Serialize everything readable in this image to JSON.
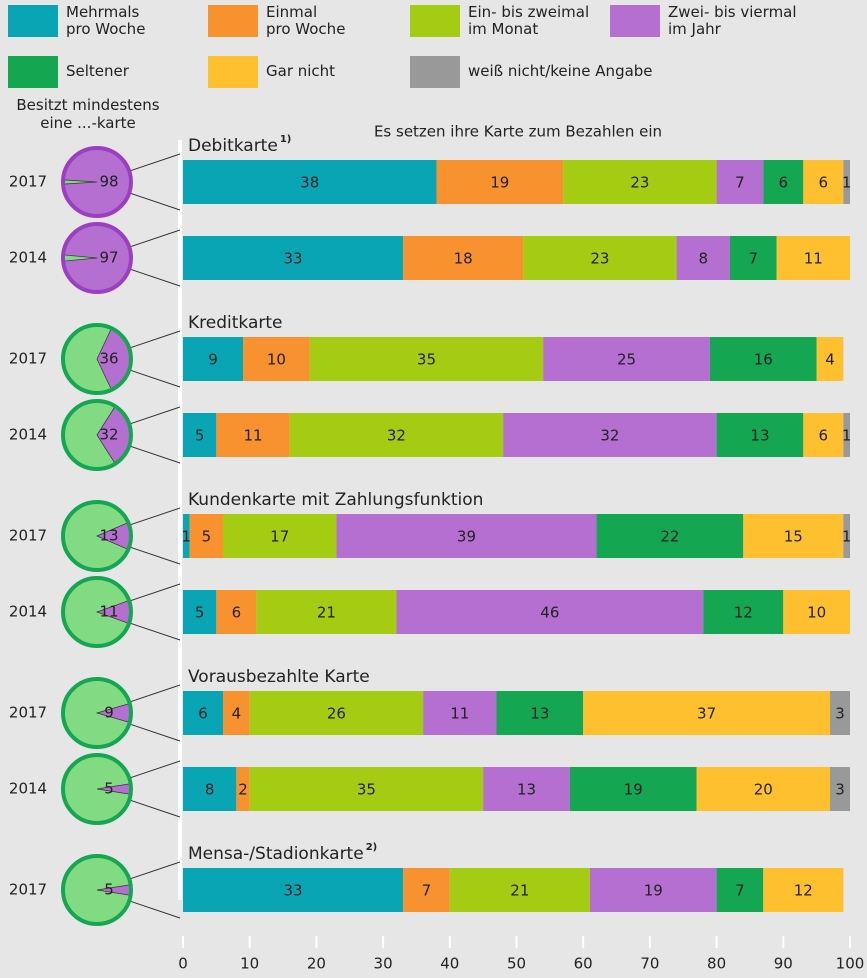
{
  "chart_data": {
    "type": "bar",
    "orientation": "horizontal",
    "stacked": true,
    "title": "Es setzen ihre Karte zum Bezahlen ein",
    "ownership_label": "Besitzt mindestens\neine ...-karte",
    "ownership_color": "#b46fd0",
    "non_ownership_color": "#82db82",
    "series": [
      {
        "name": "Mehrmals\npro Woche",
        "color": "#0aa5b5",
        "values": [
          38,
          33,
          9,
          5,
          1,
          5,
          6,
          8,
          33
        ]
      },
      {
        "name": "Einmal\npro Woche",
        "color": "#f7922e",
        "values": [
          19,
          18,
          10,
          11,
          5,
          6,
          4,
          2,
          7
        ]
      },
      {
        "name": "Ein- bis zweimal\nim Monat",
        "color": "#a4cc13",
        "values": [
          23,
          23,
          35,
          32,
          17,
          21,
          26,
          35,
          21
        ]
      },
      {
        "name": "Zwei- bis viermal\nim Jahr",
        "color": "#b46fd0",
        "values": [
          7,
          8,
          25,
          32,
          39,
          46,
          11,
          13,
          19
        ]
      },
      {
        "name": "Seltener",
        "color": "#14a651",
        "values": [
          6,
          7,
          16,
          13,
          22,
          12,
          13,
          19,
          7
        ]
      },
      {
        "name": "Gar nicht",
        "color": "#fec02e",
        "values": [
          6,
          11,
          4,
          6,
          15,
          10,
          37,
          20,
          12
        ]
      },
      {
        "name": "weiß nicht/keine Angabe",
        "color": "#999999",
        "values": [
          1,
          null,
          null,
          1,
          1,
          null,
          3,
          3,
          null
        ]
      }
    ],
    "groups": [
      {
        "title": "Debitkarte",
        "note": "1)",
        "categories": [
          "2017",
          "2014"
        ],
        "ownership": [
          98,
          97
        ]
      },
      {
        "title": "Kreditkarte",
        "categories": [
          "2017",
          "2014"
        ],
        "ownership": [
          36,
          32
        ]
      },
      {
        "title": "Kundenkarte mit Zahlungsfunktion",
        "categories": [
          "2017",
          "2014"
        ],
        "ownership": [
          13,
          11
        ]
      },
      {
        "title": "Vorausbezahlte Karte",
        "categories": [
          "2017",
          "2014"
        ],
        "ownership": [
          9,
          5
        ]
      },
      {
        "title": "Mensa-/Stadionkarte",
        "note": "2)",
        "categories": [
          "2017"
        ],
        "ownership": [
          5
        ]
      }
    ],
    "xlim": [
      0,
      100
    ],
    "xticks": [
      0,
      10,
      20,
      30,
      40,
      50,
      60,
      70,
      80,
      90,
      100
    ]
  }
}
